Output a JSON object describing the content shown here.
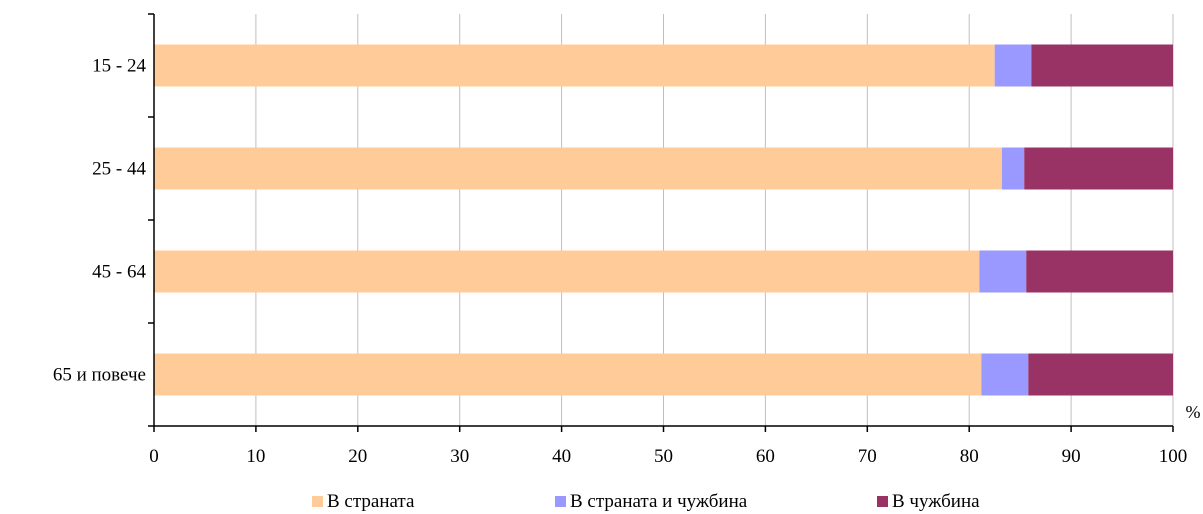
{
  "chart_data": {
    "type": "bar",
    "orientation": "horizontal",
    "stacked": true,
    "categories": [
      "15 - 24",
      "25 - 44",
      "45 - 64",
      "65 и повече"
    ],
    "series": [
      {
        "name": "В страната",
        "values": [
          82.5,
          83.2,
          81.0,
          81.2
        ],
        "color": "#FFCC99"
      },
      {
        "name": "В страната и чужбина",
        "values": [
          3.6,
          2.2,
          4.6,
          4.6
        ],
        "color": "#9999FF"
      },
      {
        "name": "В чужбина",
        "values": [
          13.9,
          14.6,
          14.4,
          14.2
        ],
        "color": "#993366"
      }
    ],
    "x_unit": "%",
    "xlim": [
      0,
      100
    ],
    "xticks": [
      "0",
      "10",
      "20",
      "30",
      "40",
      "50",
      "60",
      "70",
      "80",
      "90",
      "100"
    ],
    "grid": "vertical",
    "legend_position": "bottom"
  }
}
